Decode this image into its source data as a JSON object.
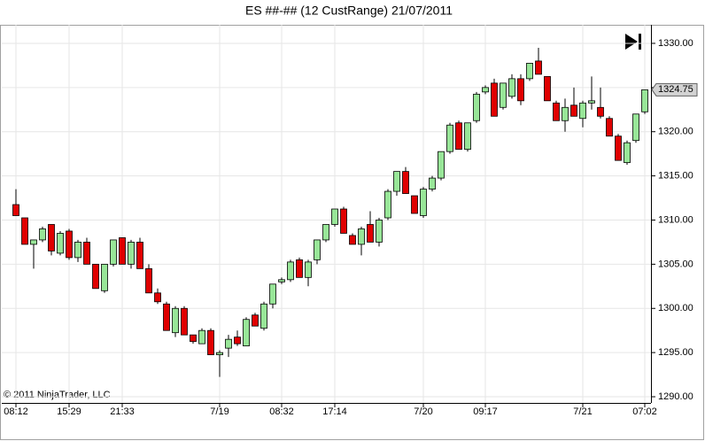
{
  "chart_data": {
    "type": "candlestick",
    "title": "ES ##-## (12 CustRange)  21/07/2011",
    "copyright": "© 2011 NinjaTrader, LLC",
    "categories": [
      "08:12",
      null,
      null,
      null,
      null,
      null,
      "15:29",
      null,
      null,
      null,
      null,
      null,
      "21:33",
      null,
      null,
      null,
      null,
      null,
      null,
      null,
      null,
      null,
      null,
      "7/19",
      null,
      null,
      null,
      null,
      null,
      null,
      "08:32",
      null,
      null,
      null,
      null,
      null,
      "17:14",
      null,
      null,
      null,
      null,
      null,
      null,
      null,
      null,
      null,
      "7/20",
      null,
      null,
      null,
      null,
      null,
      null,
      "09:17",
      null,
      null,
      null,
      null,
      null,
      null,
      null,
      null,
      null,
      null,
      "7/21",
      null,
      null,
      null,
      null,
      null,
      null,
      "07:02"
    ],
    "open": [
      1311.75,
      1310.25,
      1307.25,
      1307.75,
      1309.5,
      1306.25,
      1308.75,
      1305.75,
      1307.5,
      1305,
      1302,
      1305,
      1308,
      1305,
      1307.5,
      1304.5,
      1301.75,
      1300.5,
      1297.25,
      1300,
      1297,
      1296,
      1297.5,
      1294.75,
      1295.5,
      1296.75,
      1295.75,
      1299.25,
      1297.75,
      1300.5,
      1303,
      1303.25,
      1305.5,
      1303.5,
      1305.5,
      1307.75,
      1309.5,
      1311.25,
      1308.25,
      1307.25,
      1309.5,
      1307.5,
      1310.25,
      1313.25,
      1315.5,
      1312.75,
      1310.5,
      1313.5,
      1314.75,
      1317.75,
      1321,
      1318,
      1321.25,
      1324.5,
      1325.5,
      1322.75,
      1324,
      1326,
      1326,
      1328,
      1326.25,
      1323.25,
      1321.25,
      1323,
      1321.5,
      1323.25,
      1322.75,
      1321.5,
      1319.5,
      1316.5,
      1319,
      1322.25
    ],
    "high": [
      1313.5,
      1310.25,
      1307.75,
      1309.25,
      1309.5,
      1308.75,
      1309,
      1307.75,
      1308,
      1305,
      1305,
      1307.75,
      1308,
      1307.75,
      1308,
      1305,
      1302.25,
      1300.75,
      1300.25,
      1300.25,
      1297,
      1297.75,
      1297.75,
      1295.25,
      1297,
      1297.5,
      1299,
      1299.5,
      1300.75,
      1302.75,
      1303.5,
      1305.5,
      1305.75,
      1305.5,
      1307.75,
      1309.5,
      1311.25,
      1311.5,
      1308.5,
      1309.25,
      1311,
      1310.25,
      1313.5,
      1315.5,
      1316,
      1312.75,
      1313.75,
      1315,
      1317.75,
      1321,
      1321.25,
      1321,
      1324.5,
      1325.25,
      1326,
      1325.5,
      1326.5,
      1326.5,
      1327.75,
      1329.5,
      1326.25,
      1323.5,
      1323.75,
      1325,
      1323.5,
      1326.25,
      1325,
      1321.75,
      1319.75,
      1319,
      1322,
      1324.75
    ],
    "low": [
      1310.5,
      1307.25,
      1304.5,
      1307.5,
      1306,
      1306,
      1305.5,
      1305.25,
      1305,
      1302.25,
      1301.75,
      1304.75,
      1305,
      1304.5,
      1304.5,
      1301.75,
      1300.5,
      1297.5,
      1296.75,
      1297,
      1296,
      1296,
      1294.75,
      1292.25,
      1294.5,
      1295.75,
      1295.75,
      1298,
      1297.5,
      1300,
      1302.75,
      1303,
      1303.5,
      1302.5,
      1305,
      1307.5,
      1309.25,
      1308.5,
      1307.25,
      1306,
      1307.5,
      1307,
      1310,
      1312.75,
      1313,
      1310.75,
      1310.25,
      1313.25,
      1314.5,
      1317.5,
      1318,
      1317.75,
      1321,
      1324.25,
      1321.75,
      1322.5,
      1323.75,
      1323,
      1325.75,
      1326.5,
      1323.5,
      1321.25,
      1320,
      1321.75,
      1320.5,
      1322.5,
      1321.5,
      1319.5,
      1316.75,
      1316.25,
      1318.75,
      1322
    ],
    "close": [
      1310.5,
      1307.25,
      1307.75,
      1309,
      1306.5,
      1308.5,
      1305.75,
      1307.5,
      1305,
      1302.25,
      1305,
      1307.75,
      1305,
      1307.5,
      1304.5,
      1301.75,
      1300.75,
      1297.5,
      1300,
      1297,
      1296.25,
      1297.5,
      1294.75,
      1295,
      1296.5,
      1296,
      1298.75,
      1298,
      1300.5,
      1302.75,
      1303.25,
      1305.25,
      1303.5,
      1305.25,
      1307.75,
      1309.5,
      1311.25,
      1308.5,
      1307.25,
      1309,
      1307.5,
      1310,
      1313.25,
      1315.5,
      1313,
      1310.75,
      1313.5,
      1314.75,
      1317.75,
      1320.75,
      1318,
      1321,
      1324.25,
      1325,
      1321.75,
      1325.5,
      1326,
      1323.5,
      1327.75,
      1326.5,
      1323.5,
      1321.25,
      1322.75,
      1321.75,
      1323.25,
      1323.5,
      1321.75,
      1319.5,
      1316.75,
      1318.75,
      1322,
      1324.75
    ],
    "up_color": "#98e698",
    "down_color": "#e00000",
    "outline_color": "#000000",
    "ylim": [
      1289.3,
      1331.7
    ],
    "yticks": [
      {
        "value": 1290,
        "label": "1290.00"
      },
      {
        "value": 1295,
        "label": "1295.00"
      },
      {
        "value": 1300,
        "label": "1300.00"
      },
      {
        "value": 1305,
        "label": "1305.00"
      },
      {
        "value": 1310,
        "label": "1310.00"
      },
      {
        "value": 1315,
        "label": "1315.00"
      },
      {
        "value": 1320,
        "label": "1320.00"
      },
      {
        "value": 1325,
        "label": "1325.00"
      },
      {
        "value": 1330,
        "label": "1330.00"
      }
    ],
    "grid": true
  }
}
